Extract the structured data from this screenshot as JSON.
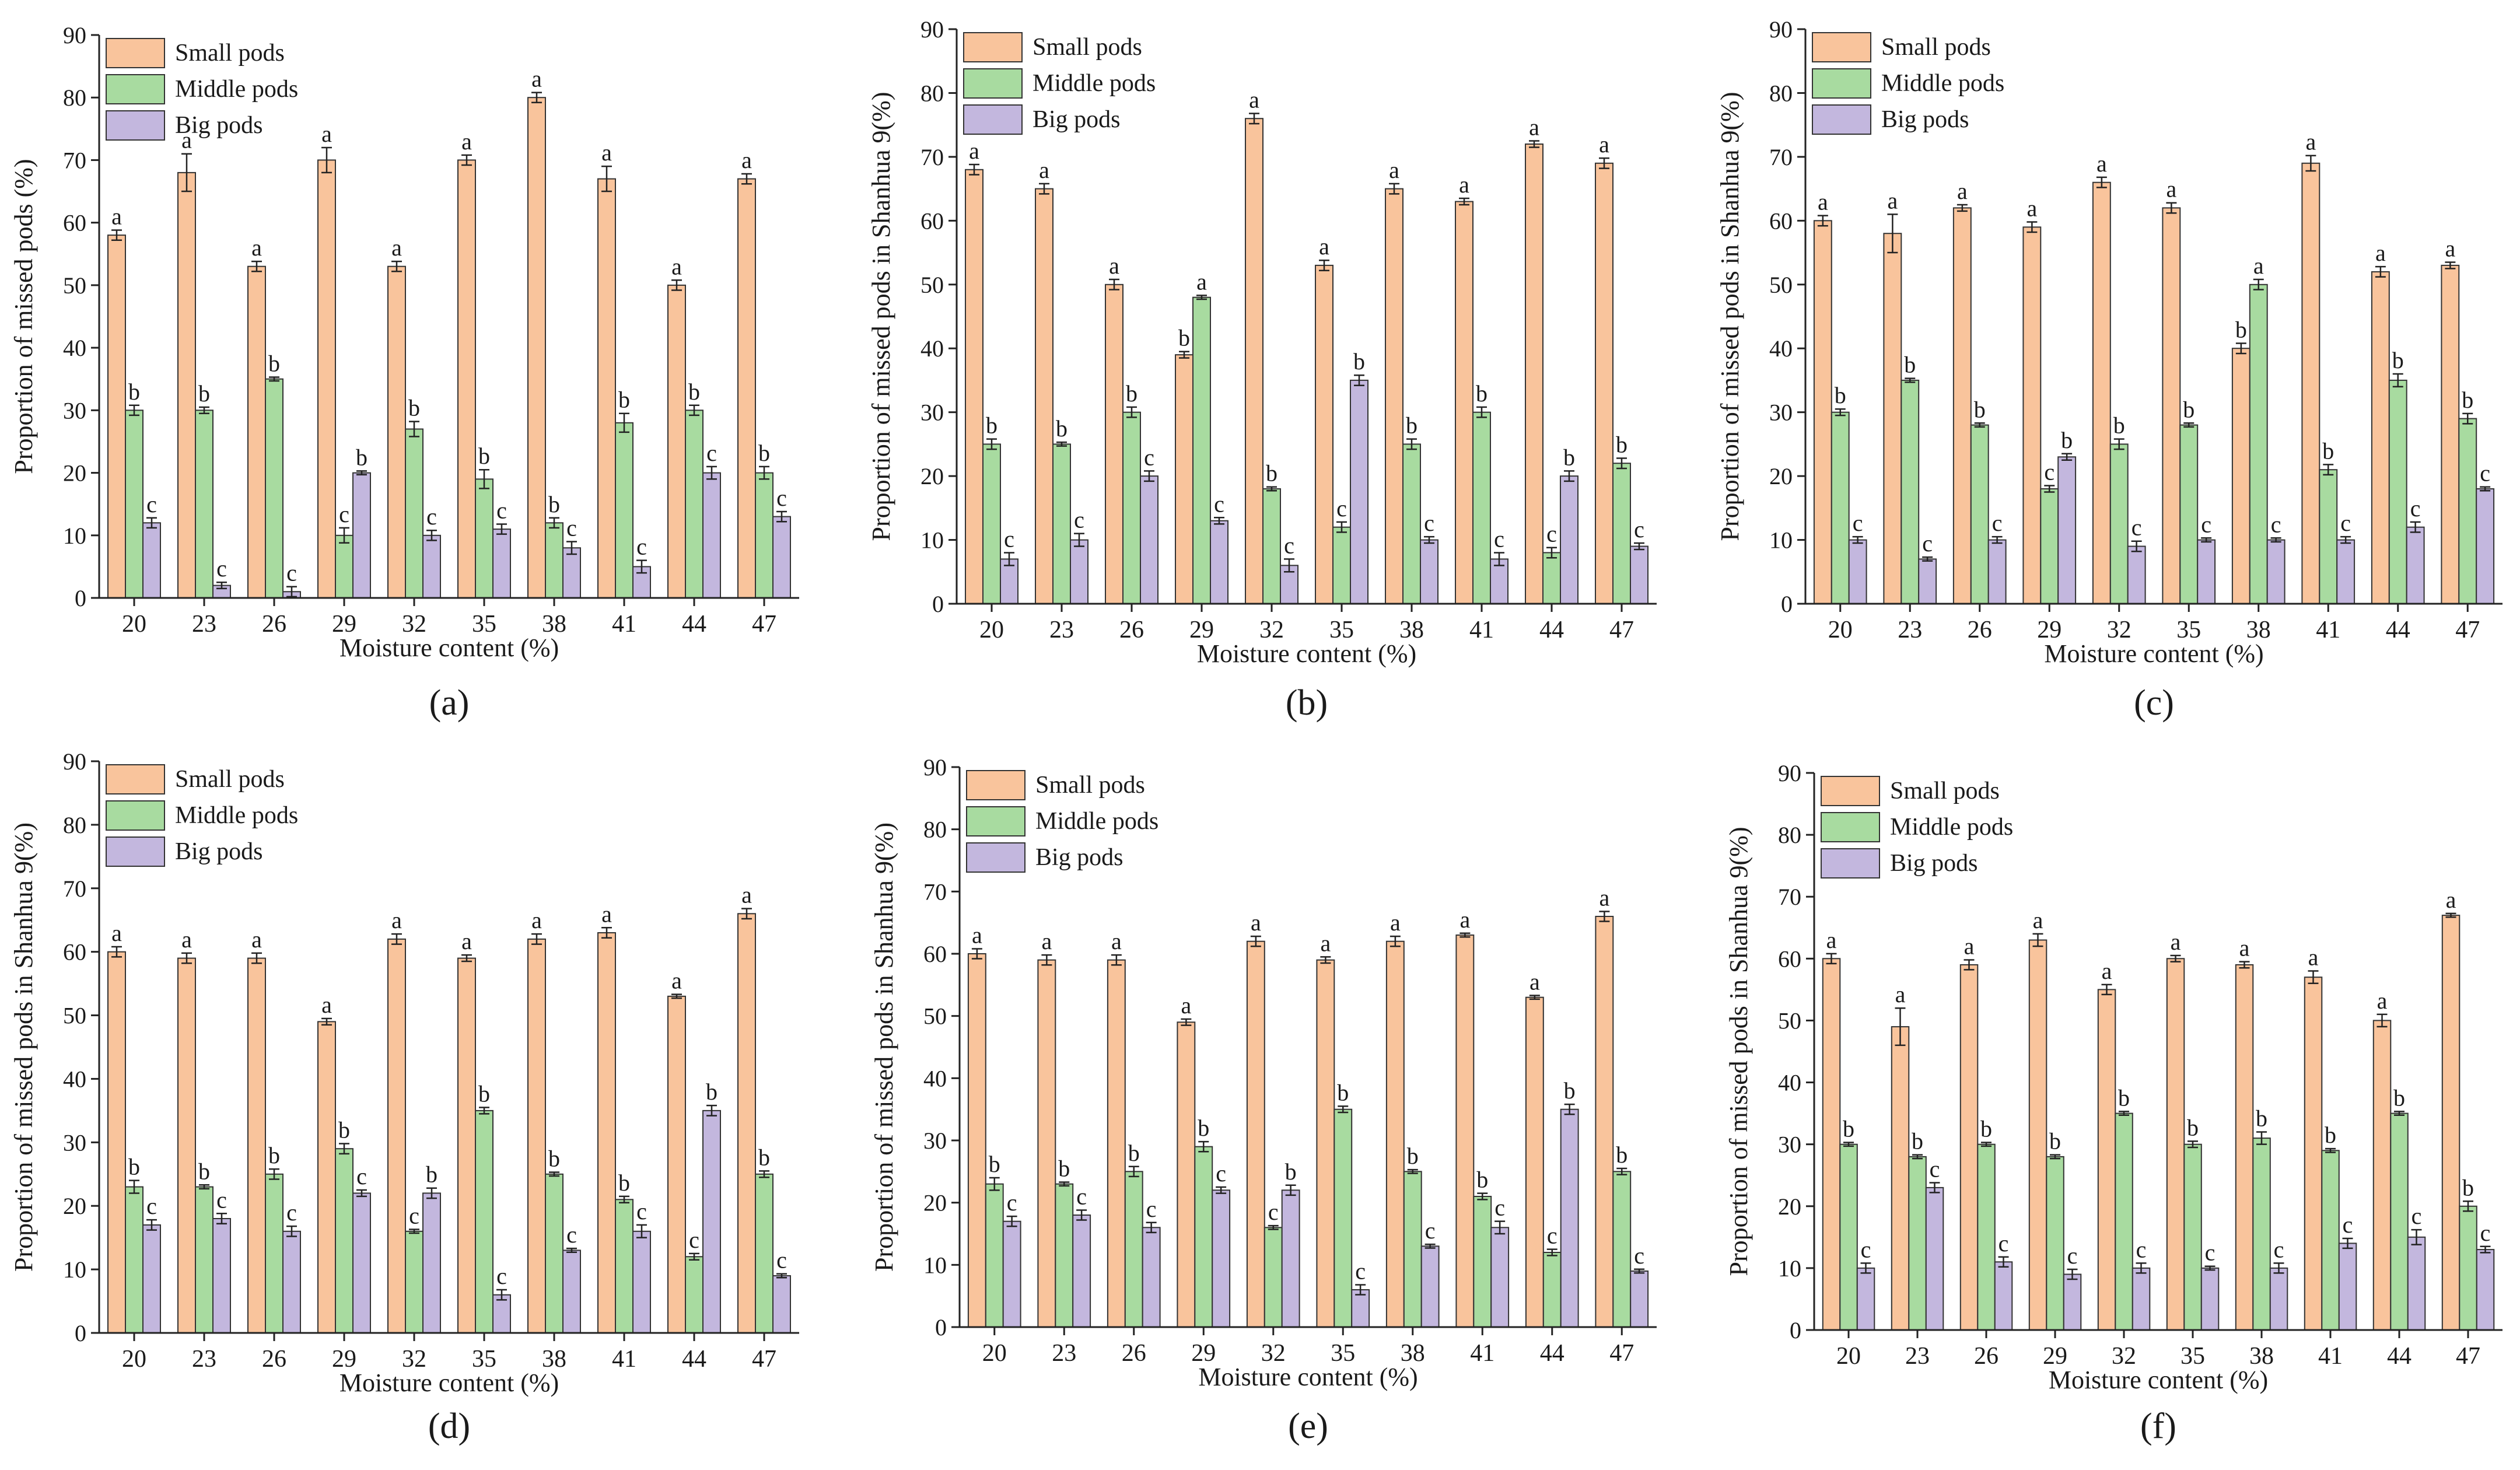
{
  "colors": {
    "small": "#F9C49C",
    "middle": "#A8DBA0",
    "big": "#C3B7DE",
    "axis": "#222222",
    "errorbar": "#222222"
  },
  "chart_data": [
    {
      "type": "bar",
      "panel_label": "(a)",
      "categories": [
        "20",
        "23",
        "26",
        "29",
        "32",
        "35",
        "38",
        "41",
        "44",
        "47"
      ],
      "xlabel": "Moisture content (%)",
      "ylabel": "Proportion of missed pods (%)",
      "ylim": [
        0,
        90
      ],
      "yticks": [
        0,
        10,
        20,
        30,
        40,
        50,
        60,
        70,
        80,
        90
      ],
      "legend_position": "top-left",
      "grid": false,
      "series": [
        {
          "name": "Small pods",
          "color_key": "small",
          "values": [
            58,
            68,
            53,
            70,
            53,
            70,
            80,
            67,
            50,
            67
          ],
          "errors": [
            0.8,
            3,
            0.8,
            2,
            0.8,
            0.8,
            0.8,
            2,
            0.8,
            0.8
          ],
          "labels": [
            "a",
            "a",
            "a",
            "a",
            "a",
            "a",
            "a",
            "a",
            "a",
            "a"
          ]
        },
        {
          "name": "Middle pods",
          "color_key": "middle",
          "values": [
            30,
            30,
            35,
            10,
            27,
            19,
            12,
            28,
            30,
            20
          ],
          "errors": [
            0.8,
            0.5,
            0.3,
            1.2,
            1.2,
            1.5,
            0.8,
            1.5,
            0.8,
            1
          ],
          "labels": [
            "b",
            "b",
            "b",
            "c",
            "b",
            "b",
            "b",
            "b",
            "b",
            "b"
          ]
        },
        {
          "name": "Big pods",
          "color_key": "big",
          "values": [
            12,
            2,
            1,
            20,
            10,
            11,
            8,
            5,
            20,
            13
          ],
          "errors": [
            0.8,
            0.5,
            0.8,
            0.3,
            0.8,
            0.8,
            1,
            1,
            1,
            0.8
          ],
          "labels": [
            "c",
            "c",
            "c",
            "b",
            "c",
            "c",
            "c",
            "c",
            "c",
            "c"
          ]
        }
      ]
    },
    {
      "type": "bar",
      "panel_label": "(b)",
      "categories": [
        "20",
        "23",
        "26",
        "29",
        "32",
        "35",
        "38",
        "41",
        "44",
        "47"
      ],
      "xlabel": "Moisture content (%)",
      "ylabel": "Proportion of missed pods in Shanhua 9(%)",
      "ylim": [
        0,
        90
      ],
      "yticks": [
        0,
        10,
        20,
        30,
        40,
        50,
        60,
        70,
        80,
        90
      ],
      "legend_position": "top-left",
      "grid": false,
      "series": [
        {
          "name": "Small pods",
          "color_key": "small",
          "values": [
            68,
            65,
            50,
            39,
            76,
            53,
            65,
            63,
            72,
            69
          ],
          "errors": [
            0.8,
            0.8,
            0.8,
            0.5,
            0.8,
            0.8,
            0.8,
            0.5,
            0.5,
            0.8
          ],
          "labels": [
            "a",
            "a",
            "a",
            "b",
            "a",
            "a",
            "a",
            "a",
            "a",
            "a"
          ]
        },
        {
          "name": "Middle pods",
          "color_key": "middle",
          "values": [
            25,
            25,
            30,
            48,
            18,
            12,
            25,
            30,
            8,
            22
          ],
          "errors": [
            0.8,
            0.3,
            0.8,
            0.3,
            0.3,
            0.8,
            0.8,
            0.8,
            0.8,
            0.8
          ],
          "labels": [
            "b",
            "b",
            "b",
            "a",
            "b",
            "c",
            "b",
            "b",
            "c",
            "b"
          ]
        },
        {
          "name": "Big pods",
          "color_key": "big",
          "values": [
            7,
            10,
            20,
            13,
            6,
            35,
            10,
            7,
            20,
            9
          ],
          "errors": [
            1,
            1,
            0.8,
            0.5,
            1,
            0.8,
            0.5,
            1,
            0.8,
            0.5
          ],
          "labels": [
            "c",
            "c",
            "c",
            "c",
            "c",
            "b",
            "c",
            "c",
            "b",
            "c"
          ]
        }
      ]
    },
    {
      "type": "bar",
      "panel_label": "(c)",
      "categories": [
        "20",
        "23",
        "26",
        "29",
        "32",
        "35",
        "38",
        "41",
        "44",
        "47"
      ],
      "xlabel": "Moisture content (%)",
      "ylabel": "Proportion of missed pods in Shanhua 9(%)",
      "ylim": [
        0,
        90
      ],
      "yticks": [
        0,
        10,
        20,
        30,
        40,
        50,
        60,
        70,
        80,
        90
      ],
      "legend_position": "top-left",
      "grid": false,
      "series": [
        {
          "name": "Small pods",
          "color_key": "small",
          "values": [
            60,
            58,
            62,
            59,
            66,
            62,
            40,
            69,
            52,
            53
          ],
          "errors": [
            0.8,
            3,
            0.5,
            0.8,
            0.8,
            0.8,
            0.8,
            1.2,
            0.8,
            0.5
          ],
          "labels": [
            "a",
            "a",
            "a",
            "a",
            "a",
            "a",
            "b",
            "a",
            "a",
            "a"
          ]
        },
        {
          "name": "Middle pods",
          "color_key": "middle",
          "values": [
            30,
            35,
            28,
            18,
            25,
            28,
            50,
            21,
            35,
            29
          ],
          "errors": [
            0.5,
            0.3,
            0.3,
            0.5,
            0.8,
            0.3,
            0.8,
            0.8,
            1,
            0.8
          ],
          "labels": [
            "b",
            "b",
            "b",
            "c",
            "b",
            "b",
            "a",
            "b",
            "b",
            "b"
          ]
        },
        {
          "name": "Big pods",
          "color_key": "big",
          "values": [
            10,
            7,
            10,
            23,
            9,
            10,
            10,
            10,
            12,
            18
          ],
          "errors": [
            0.5,
            0.3,
            0.5,
            0.5,
            0.8,
            0.3,
            0.3,
            0.5,
            0.8,
            0.3
          ],
          "labels": [
            "c",
            "c",
            "c",
            "b",
            "c",
            "c",
            "c",
            "c",
            "c",
            "c"
          ]
        }
      ]
    },
    {
      "type": "bar",
      "panel_label": "(d)",
      "categories": [
        "20",
        "23",
        "26",
        "29",
        "32",
        "35",
        "38",
        "41",
        "44",
        "47"
      ],
      "xlabel": "Moisture content (%)",
      "ylabel": "Proportion of missed pods in Shanhua 9(%)",
      "ylim": [
        0,
        90
      ],
      "yticks": [
        0,
        10,
        20,
        30,
        40,
        50,
        60,
        70,
        80,
        90
      ],
      "legend_position": "top-left",
      "grid": false,
      "series": [
        {
          "name": "Small pods",
          "color_key": "small",
          "values": [
            60,
            59,
            59,
            49,
            62,
            59,
            62,
            63,
            53,
            66
          ],
          "errors": [
            0.8,
            0.8,
            0.8,
            0.5,
            0.8,
            0.5,
            0.8,
            0.8,
            0.3,
            0.8
          ],
          "labels": [
            "a",
            "a",
            "a",
            "a",
            "a",
            "a",
            "a",
            "a",
            "a",
            "a"
          ]
        },
        {
          "name": "Middle pods",
          "color_key": "middle",
          "values": [
            23,
            23,
            25,
            29,
            16,
            35,
            25,
            21,
            12,
            25
          ],
          "errors": [
            1,
            0.3,
            0.8,
            0.8,
            0.3,
            0.5,
            0.3,
            0.5,
            0.5,
            0.5
          ],
          "labels": [
            "b",
            "b",
            "b",
            "b",
            "c",
            "b",
            "b",
            "b",
            "c",
            "b"
          ]
        },
        {
          "name": "Big pods",
          "color_key": "big",
          "values": [
            17,
            18,
            16,
            22,
            22,
            6,
            13,
            16,
            35,
            9
          ],
          "errors": [
            0.8,
            0.8,
            0.8,
            0.5,
            0.8,
            0.8,
            0.3,
            1,
            0.8,
            0.3
          ],
          "labels": [
            "c",
            "c",
            "c",
            "c",
            "b",
            "c",
            "c",
            "c",
            "b",
            "c"
          ]
        }
      ]
    },
    {
      "type": "bar",
      "panel_label": "(e)",
      "categories": [
        "20",
        "23",
        "26",
        "29",
        "32",
        "35",
        "38",
        "41",
        "44",
        "47"
      ],
      "xlabel": "Moisture content (%)",
      "ylabel": "Proportion of missed pods in Shanhua 9(%)",
      "ylim": [
        0,
        90
      ],
      "yticks": [
        0,
        10,
        20,
        30,
        40,
        50,
        60,
        70,
        80,
        90
      ],
      "legend_position": "top-left",
      "grid": false,
      "series": [
        {
          "name": "Small pods",
          "color_key": "small",
          "values": [
            60,
            59,
            59,
            49,
            62,
            59,
            62,
            63,
            53,
            66
          ],
          "errors": [
            0.8,
            0.8,
            0.8,
            0.5,
            0.8,
            0.5,
            0.8,
            0.3,
            0.3,
            0.8
          ],
          "labels": [
            "a",
            "a",
            "a",
            "a",
            "a",
            "a",
            "a",
            "a",
            "a",
            "a"
          ]
        },
        {
          "name": "Middle pods",
          "color_key": "middle",
          "values": [
            23,
            23,
            25,
            29,
            16,
            35,
            25,
            21,
            12,
            25
          ],
          "errors": [
            1,
            0.3,
            0.8,
            0.8,
            0.3,
            0.5,
            0.3,
            0.5,
            0.5,
            0.5
          ],
          "labels": [
            "b",
            "b",
            "b",
            "b",
            "c",
            "b",
            "b",
            "b",
            "c",
            "b"
          ]
        },
        {
          "name": "Big pods",
          "color_key": "big",
          "values": [
            17,
            18,
            16,
            22,
            22,
            6,
            13,
            16,
            35,
            9
          ],
          "errors": [
            0.8,
            0.8,
            0.8,
            0.5,
            0.8,
            0.8,
            0.3,
            1,
            0.8,
            0.3
          ],
          "labels": [
            "c",
            "c",
            "c",
            "c",
            "b",
            "c",
            "c",
            "c",
            "b",
            "c"
          ]
        }
      ]
    },
    {
      "type": "bar",
      "panel_label": "(f)",
      "categories": [
        "20",
        "23",
        "26",
        "29",
        "32",
        "35",
        "38",
        "41",
        "44",
        "47"
      ],
      "xlabel": "Moisture content (%)",
      "ylabel": "Proportion of missed pods in Shanhua 9(%)",
      "ylim": [
        0,
        90
      ],
      "yticks": [
        0,
        10,
        20,
        30,
        40,
        50,
        60,
        70,
        80,
        90
      ],
      "legend_position": "top-left",
      "grid": false,
      "series": [
        {
          "name": "Small pods",
          "color_key": "small",
          "values": [
            60,
            49,
            59,
            63,
            55,
            60,
            59,
            57,
            50,
            67
          ],
          "errors": [
            0.8,
            3,
            0.8,
            1,
            0.8,
            0.5,
            0.5,
            1,
            1,
            0.3
          ],
          "labels": [
            "a",
            "a",
            "a",
            "a",
            "a",
            "a",
            "a",
            "a",
            "a",
            "a"
          ]
        },
        {
          "name": "Middle pods",
          "color_key": "middle",
          "values": [
            30,
            28,
            30,
            28,
            35,
            30,
            31,
            29,
            35,
            20
          ],
          "errors": [
            0.3,
            0.3,
            0.3,
            0.3,
            0.3,
            0.5,
            1,
            0.3,
            0.3,
            0.8
          ],
          "labels": [
            "b",
            "b",
            "b",
            "b",
            "b",
            "b",
            "b",
            "b",
            "b",
            "b"
          ]
        },
        {
          "name": "Big pods",
          "color_key": "big",
          "values": [
            10,
            23,
            11,
            9,
            10,
            10,
            10,
            14,
            15,
            13
          ],
          "errors": [
            0.8,
            0.8,
            0.8,
            0.8,
            0.8,
            0.3,
            0.8,
            0.8,
            1.2,
            0.5
          ],
          "labels": [
            "c",
            "c",
            "c",
            "c",
            "c",
            "c",
            "c",
            "c",
            "c",
            "c"
          ]
        }
      ]
    }
  ]
}
